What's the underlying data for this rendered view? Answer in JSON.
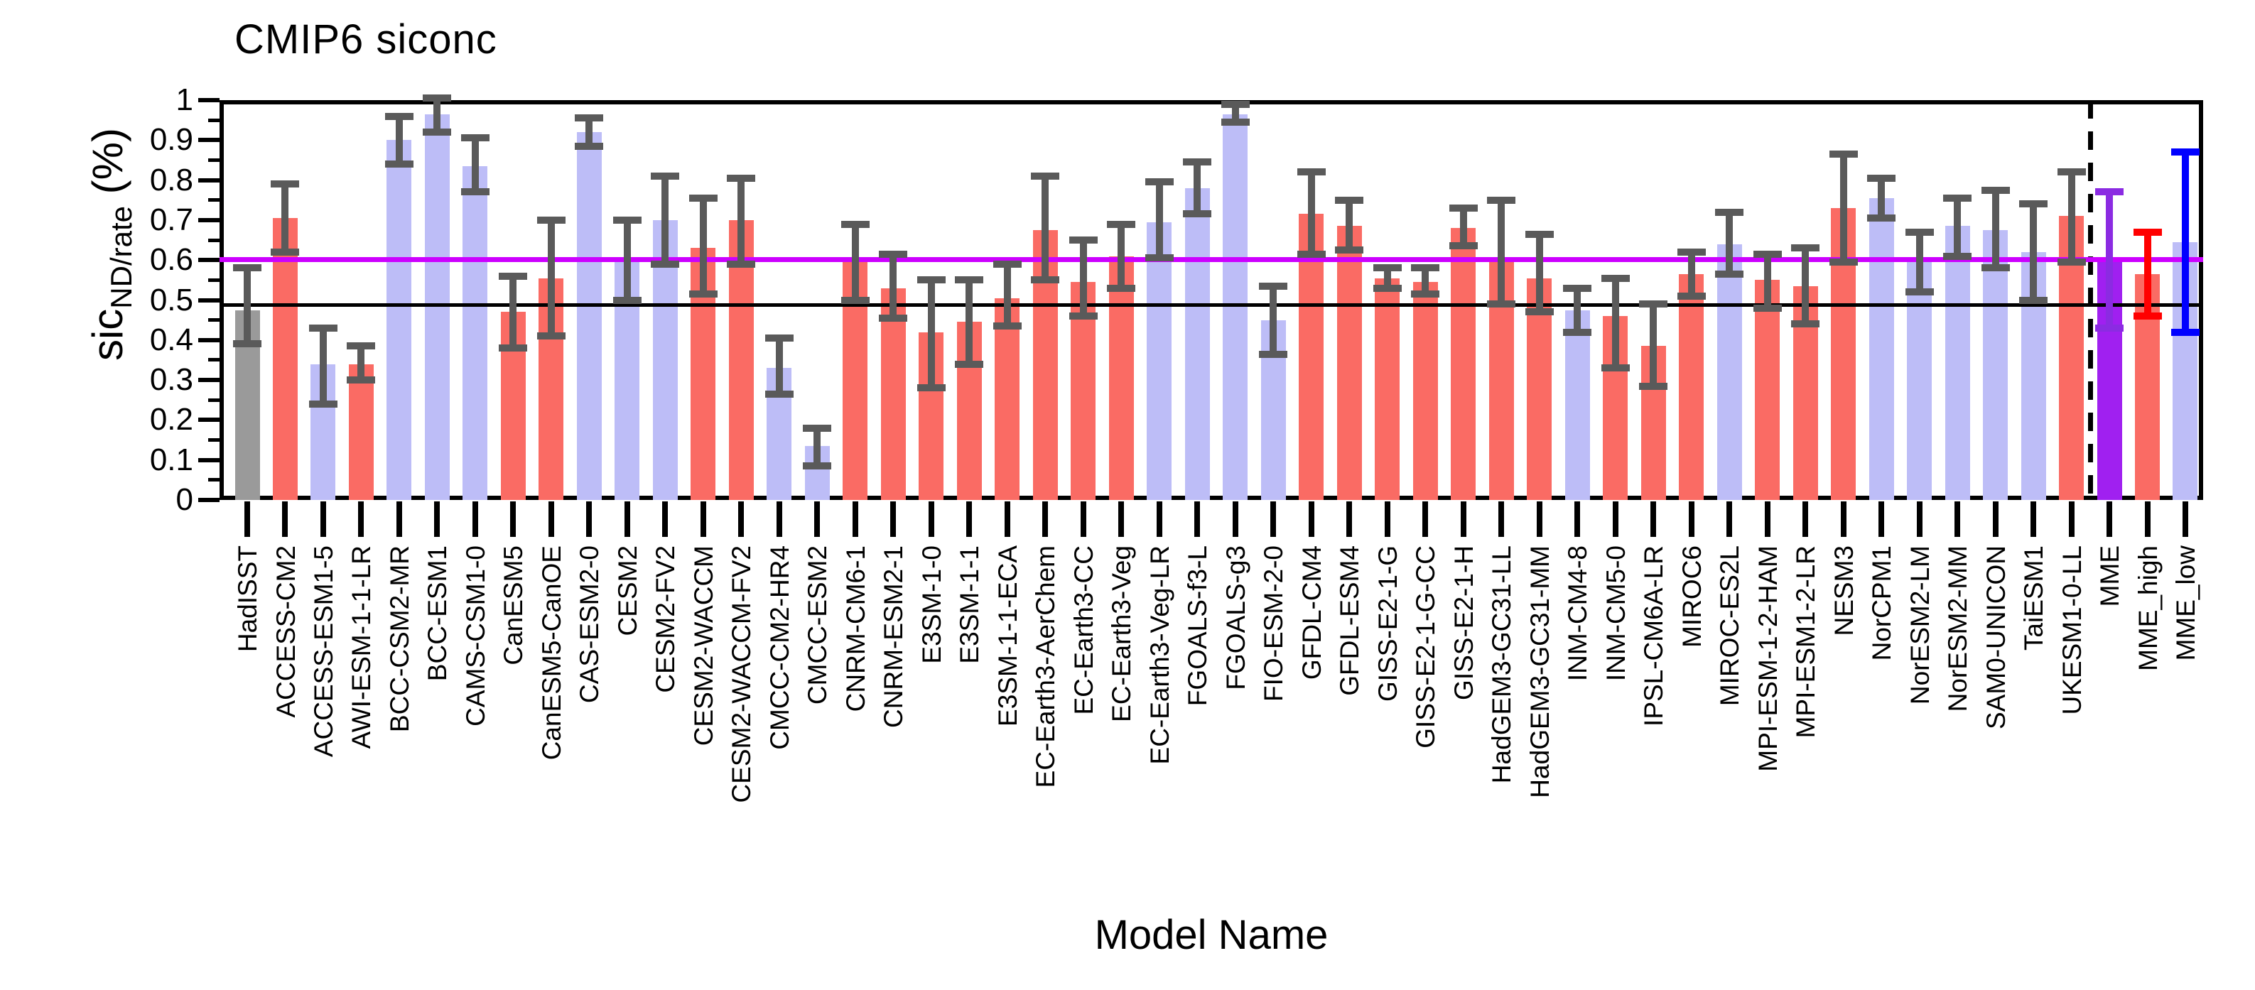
{
  "title": "CMIP6 siconc",
  "y_axis_title": {
    "main": "sic",
    "sub": "ND/rate",
    "unit": " (%)"
  },
  "x_axis_title": "Model Name",
  "colors": {
    "observation_bar": "#9A9A9A",
    "red_bar": "#FA6B64",
    "blue_bar": "#BDBDF7",
    "purple_bar": "#A020F0",
    "error_default": "#5A5A5A",
    "error_mme": "#8B2BE2",
    "error_mme_high": "#FF0000",
    "error_mme_low": "#0000FF",
    "black_line": "#000000",
    "magenta_line": "#CC00FF"
  },
  "chart_data": {
    "type": "bar",
    "title": "CMIP6 siconc",
    "xlabel": "Model Name",
    "ylabel": "sic_ND/rate (%)",
    "ylim": [
      0,
      1
    ],
    "y_major_ticks": [
      "1",
      "0.9",
      "0.8",
      "0.7",
      "0.6",
      "0.5",
      "0.4",
      "0.3",
      "0.2",
      "0.1",
      "0"
    ],
    "y_major_values": [
      1,
      0.9,
      0.8,
      0.7,
      0.6,
      0.5,
      0.4,
      0.3,
      0.2,
      0.1,
      0
    ],
    "y_minor_values": [
      0.95,
      0.85,
      0.75,
      0.65,
      0.55,
      0.45,
      0.35,
      0.25,
      0.15,
      0.05
    ],
    "grid": false,
    "reference_lines": [
      {
        "name": "observation-line",
        "value": 0.487,
        "color_key": "black_line"
      },
      {
        "name": "threshold-line",
        "value": 0.602,
        "color_key": "magenta_line"
      }
    ],
    "separator_before_index": 49,
    "categories": [
      "HadISST",
      "ACCESS-CM2",
      "ACCESS-ESM1-5",
      "AWI-ESM-1-1-LR",
      "BCC-CSM2-MR",
      "BCC-ESM1",
      "CAMS-CSM1-0",
      "CanESM5",
      "CanESM5-CanOE",
      "CAS-ESM2-0",
      "CESM2",
      "CESM2-FV2",
      "CESM2-WACCM",
      "CESM2-WACCM-FV2",
      "CMCC-CM2-HR4",
      "CMCC-ESM2",
      "CNRM-CM6-1",
      "CNRM-ESM2-1",
      "E3SM-1-0",
      "E3SM-1-1",
      "E3SM-1-1-ECA",
      "EC-Earth3-AerChem",
      "EC-Earth3-CC",
      "EC-Earth3-Veg",
      "EC-Earth3-Veg-LR",
      "FGOALS-f3-L",
      "FGOALS-g3",
      "FIO-ESM-2-0",
      "GFDL-CM4",
      "GFDL-ESM4",
      "GISS-E2-1-G",
      "GISS-E2-1-G-CC",
      "GISS-E2-1-H",
      "HadGEM3-GC31-LL",
      "HadGEM3-GC31-MM",
      "INM-CM4-8",
      "INM-CM5-0",
      "IPSL-CM6A-LR",
      "MIROC6",
      "MIROC-ES2L",
      "MPI-ESM-1-2-HAM",
      "MPI-ESM1-2-LR",
      "NESM3",
      "NorCPM1",
      "NorESM2-LM",
      "NorESM2-MM",
      "SAM0-UNICON",
      "TaiESM1",
      "UKESM1-0-LL",
      "MME",
      "MME_high",
      "MME_low"
    ],
    "series": [
      {
        "name": "sicND/rate",
        "values": [
          0.475,
          0.705,
          0.34,
          0.34,
          0.9,
          0.965,
          0.835,
          0.47,
          0.555,
          0.92,
          0.6,
          0.7,
          0.63,
          0.7,
          0.33,
          0.135,
          0.6,
          0.53,
          0.42,
          0.445,
          0.505,
          0.675,
          0.545,
          0.61,
          0.695,
          0.78,
          0.965,
          0.45,
          0.715,
          0.685,
          0.555,
          0.545,
          0.68,
          0.6,
          0.555,
          0.475,
          0.46,
          0.385,
          0.565,
          0.64,
          0.55,
          0.535,
          0.73,
          0.755,
          0.6,
          0.685,
          0.675,
          0.62,
          0.71,
          0.6,
          0.565,
          0.645
        ],
        "err_low": [
          0.39,
          0.62,
          0.24,
          0.3,
          0.84,
          0.92,
          0.77,
          0.38,
          0.41,
          0.885,
          0.5,
          0.59,
          0.515,
          0.59,
          0.265,
          0.085,
          0.5,
          0.455,
          0.28,
          0.34,
          0.435,
          0.55,
          0.46,
          0.53,
          0.605,
          0.715,
          0.945,
          0.365,
          0.615,
          0.625,
          0.53,
          0.515,
          0.635,
          0.49,
          0.47,
          0.42,
          0.33,
          0.285,
          0.51,
          0.565,
          0.48,
          0.44,
          0.595,
          0.705,
          0.52,
          0.61,
          0.58,
          0.5,
          0.595,
          0.43,
          0.46,
          0.42
        ],
        "err_high": [
          0.58,
          0.79,
          0.43,
          0.385,
          0.96,
          1.005,
          0.905,
          0.56,
          0.7,
          0.955,
          0.7,
          0.81,
          0.755,
          0.805,
          0.405,
          0.18,
          0.69,
          0.615,
          0.55,
          0.55,
          0.59,
          0.81,
          0.65,
          0.69,
          0.795,
          0.845,
          0.99,
          0.535,
          0.82,
          0.75,
          0.58,
          0.58,
          0.73,
          0.75,
          0.665,
          0.53,
          0.555,
          0.49,
          0.62,
          0.72,
          0.615,
          0.63,
          0.865,
          0.805,
          0.67,
          0.755,
          0.775,
          0.74,
          0.82,
          0.77,
          0.67,
          0.87
        ],
        "bar_color_keys": [
          "observation_bar",
          "red_bar",
          "blue_bar",
          "red_bar",
          "blue_bar",
          "blue_bar",
          "blue_bar",
          "red_bar",
          "red_bar",
          "blue_bar",
          "blue_bar",
          "blue_bar",
          "red_bar",
          "red_bar",
          "blue_bar",
          "blue_bar",
          "red_bar",
          "red_bar",
          "red_bar",
          "red_bar",
          "red_bar",
          "red_bar",
          "red_bar",
          "red_bar",
          "blue_bar",
          "blue_bar",
          "blue_bar",
          "blue_bar",
          "red_bar",
          "red_bar",
          "red_bar",
          "red_bar",
          "red_bar",
          "red_bar",
          "red_bar",
          "blue_bar",
          "red_bar",
          "red_bar",
          "red_bar",
          "blue_bar",
          "red_bar",
          "red_bar",
          "red_bar",
          "blue_bar",
          "blue_bar",
          "blue_bar",
          "blue_bar",
          "blue_bar",
          "red_bar",
          "purple_bar",
          "red_bar",
          "blue_bar"
        ],
        "err_color_keys": [
          "error_default",
          "error_default",
          "error_default",
          "error_default",
          "error_default",
          "error_default",
          "error_default",
          "error_default",
          "error_default",
          "error_default",
          "error_default",
          "error_default",
          "error_default",
          "error_default",
          "error_default",
          "error_default",
          "error_default",
          "error_default",
          "error_default",
          "error_default",
          "error_default",
          "error_default",
          "error_default",
          "error_default",
          "error_default",
          "error_default",
          "error_default",
          "error_default",
          "error_default",
          "error_default",
          "error_default",
          "error_default",
          "error_default",
          "error_default",
          "error_default",
          "error_default",
          "error_default",
          "error_default",
          "error_default",
          "error_default",
          "error_default",
          "error_default",
          "error_default",
          "error_default",
          "error_default",
          "error_default",
          "error_default",
          "error_default",
          "error_default",
          "error_mme",
          "error_mme_high",
          "error_mme_low"
        ]
      }
    ]
  },
  "layout_note": ""
}
